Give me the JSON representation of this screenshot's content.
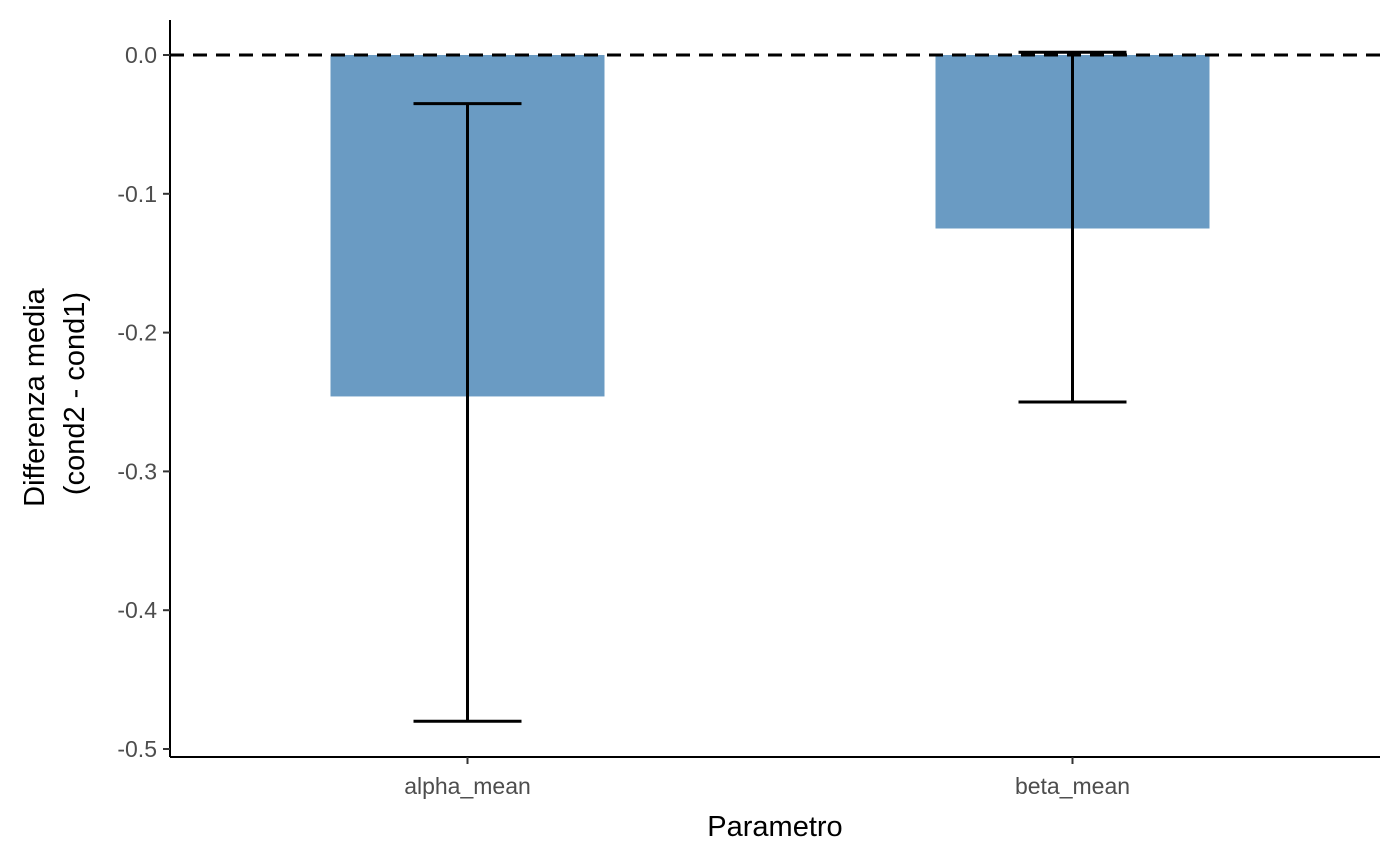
{
  "chart_data": {
    "type": "bar",
    "categories": [
      "alpha_mean",
      "beta_mean"
    ],
    "values": [
      -0.246,
      -0.125
    ],
    "error_bars": {
      "lower": [
        -0.48,
        -0.25
      ],
      "upper": [
        -0.035,
        0.002
      ]
    },
    "xlabel": "Parametro",
    "ylabel_lines": [
      "Differenza media",
      "(cond2 - cond1)"
    ],
    "ylim": [
      -0.5,
      0.0
    ],
    "yticks": [
      0.0,
      -0.1,
      -0.2,
      -0.3,
      -0.4,
      -0.5
    ],
    "ytick_labels": [
      "0.0",
      "-0.1",
      "-0.2",
      "-0.3",
      "-0.4",
      "-0.5"
    ],
    "reference_line": {
      "y": 0.0,
      "style": "dashed"
    },
    "bar_color": "#6a9bc3",
    "errorbar_color": "#000000",
    "grid": false,
    "legend": "none"
  }
}
